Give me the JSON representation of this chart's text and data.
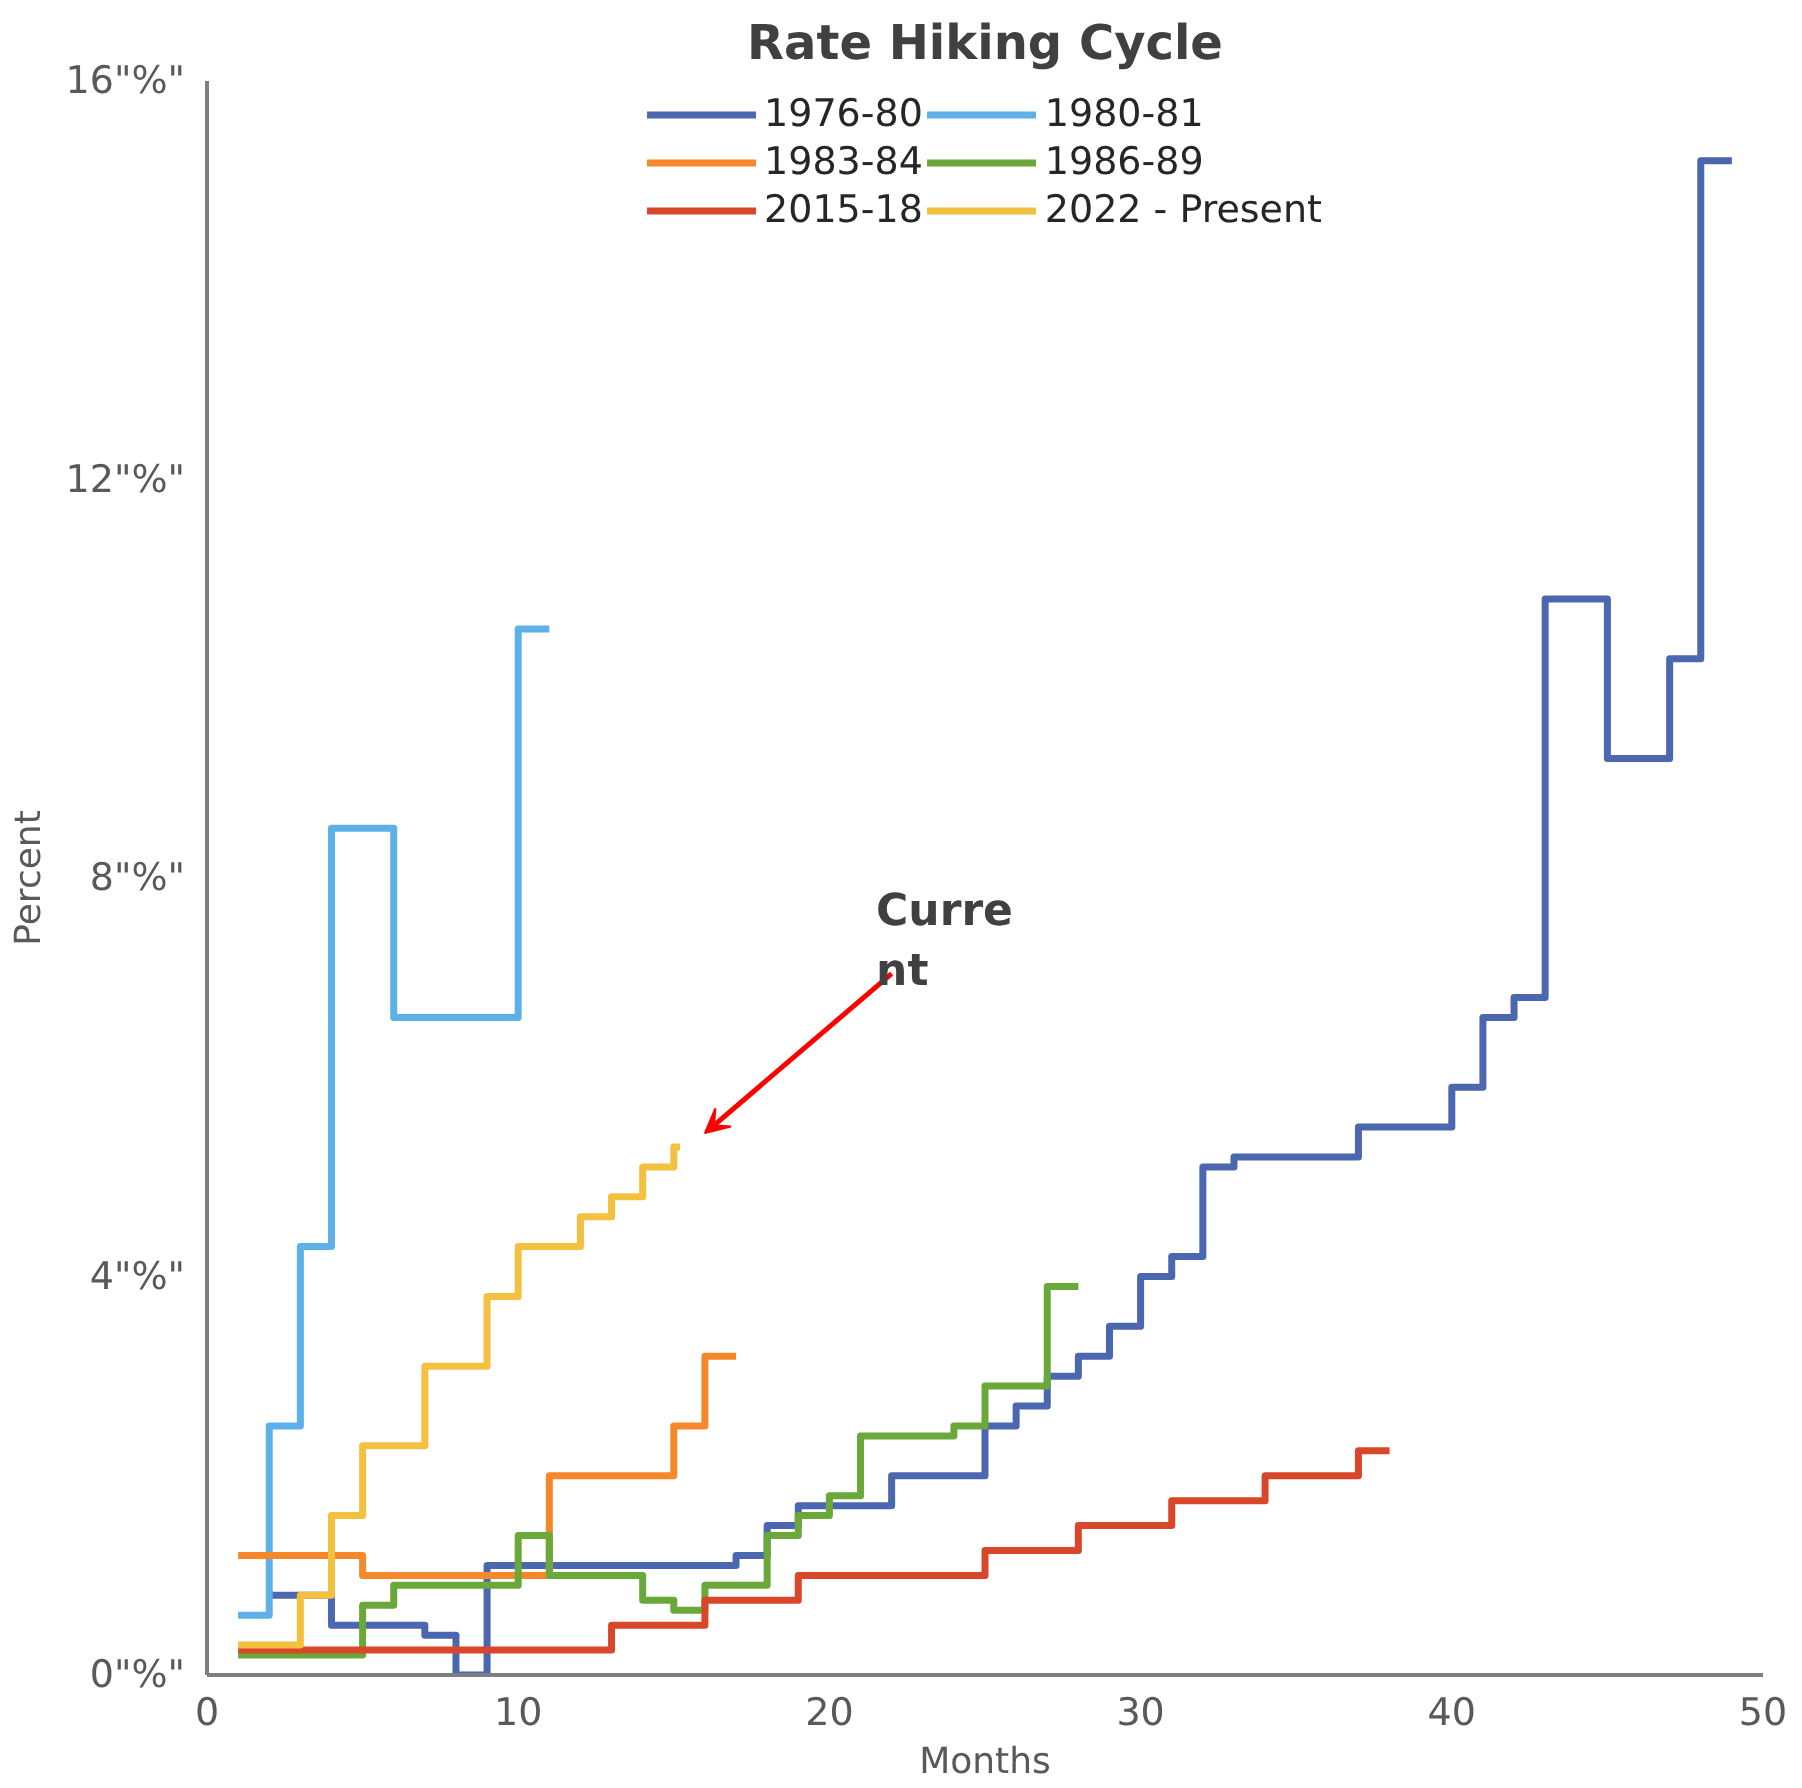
{
  "chart_data": {
    "type": "step",
    "title": "Rate Hiking Cycle",
    "xlabel": "Months",
    "ylabel": "Percent",
    "xlim": [
      0,
      50
    ],
    "xticks": [
      0,
      10,
      20,
      30,
      40,
      50
    ],
    "ylim": [
      0,
      16
    ],
    "yticks": [
      {
        "value": 0,
        "label": "0\"%\""
      },
      {
        "value": 4,
        "label": "4\"%\""
      },
      {
        "value": 8,
        "label": "8\"%\""
      },
      {
        "value": 12,
        "label": "12\"%\""
      },
      {
        "value": 16,
        "label": "16\"%\""
      }
    ],
    "grid": false,
    "legend": "top",
    "series": [
      {
        "name": "1976-80",
        "color": "#4a67b0",
        "x": [
          2,
          4,
          7,
          8,
          9,
          17,
          18,
          19,
          22,
          25,
          26,
          27,
          28,
          29,
          30,
          31,
          32,
          33,
          37,
          40,
          41,
          42,
          43,
          45,
          47,
          48,
          49
        ],
        "values": [
          0.8,
          0.5,
          0.4,
          0,
          1.1,
          1.2,
          1.5,
          1.7,
          2.0,
          2.5,
          2.7,
          3.0,
          3.2,
          3.5,
          4.0,
          4.2,
          5.1,
          5.2,
          5.5,
          5.9,
          6.6,
          6.8,
          10.8,
          9.2,
          10.2,
          15.2,
          15.2
        ]
      },
      {
        "name": "1980-81",
        "color": "#5db0e8",
        "x": [
          1,
          2,
          3,
          4,
          6,
          10,
          11
        ],
        "values": [
          0.6,
          2.5,
          4.3,
          8.5,
          6.6,
          10.5,
          10.5
        ]
      },
      {
        "name": "1983-84",
        "color": "#f5882a",
        "x": [
          1,
          5,
          11,
          15,
          16,
          17
        ],
        "values": [
          1.2,
          1.0,
          2.0,
          2.5,
          3.2,
          3.2
        ]
      },
      {
        "name": "1986-89",
        "color": "#6aa83a",
        "x": [
          1,
          5,
          6,
          10,
          11,
          14,
          15,
          16,
          18,
          19,
          20,
          21,
          24,
          25,
          27,
          28
        ],
        "values": [
          0.2,
          0.7,
          0.9,
          1.4,
          1.0,
          0.75,
          0.65,
          0.9,
          1.4,
          1.6,
          1.8,
          2.4,
          2.5,
          2.9,
          3.9,
          3.9
        ]
      },
      {
        "name": "2015-18",
        "color": "#d9472b",
        "x": [
          1,
          13,
          16,
          19,
          25,
          28,
          31,
          34,
          37,
          38
        ],
        "values": [
          0.25,
          0.5,
          0.75,
          1.0,
          1.25,
          1.5,
          1.75,
          2.0,
          2.25,
          2.25
        ]
      },
      {
        "name": "2022 - Present",
        "color": "#f4c040",
        "x": [
          1,
          3,
          4,
          5,
          7,
          9,
          10,
          12,
          13,
          14,
          15,
          15.2
        ],
        "values": [
          0.3,
          0.8,
          1.6,
          2.3,
          3.1,
          3.8,
          4.3,
          4.6,
          4.8,
          5.1,
          5.3,
          5.3
        ]
      }
    ],
    "annotations": [
      "Curre\nnt"
    ]
  }
}
